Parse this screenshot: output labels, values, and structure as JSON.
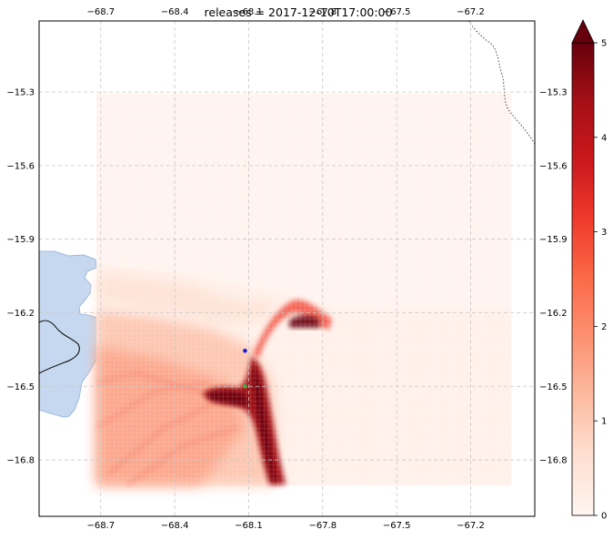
{
  "chart_data": {
    "type": "heatmap",
    "title": "releases = 2017-12-10T17:00:00",
    "title_overlaps": [
      "-68.4",
      "-68.1",
      "-67.8"
    ],
    "x_ticks": [
      -68.7,
      -68.4,
      -68.1,
      -67.8,
      -67.5,
      -67.2
    ],
    "x_tick_labels": [
      "−68.7",
      "−68.4",
      "−68.1",
      "−67.8",
      "−67.5",
      "−67.2"
    ],
    "y_ticks": [
      -15.3,
      -15.6,
      -15.9,
      -16.2,
      -16.5,
      -16.8
    ],
    "y_tick_labels": [
      "−15.3",
      "−15.6",
      "−15.9",
      "−16.2",
      "−16.5",
      "−16.8"
    ],
    "xlim": [
      -68.95,
      -66.94
    ],
    "ylim": [
      -17.03,
      -15.01
    ],
    "grid": true,
    "data_extent": {
      "lon": [
        -68.72,
        -67.04
      ],
      "lat": [
        -16.88,
        -15.29
      ]
    },
    "colorbar": {
      "min": 0,
      "max": 5,
      "extend": "max",
      "cmap": "Reds",
      "ticks": [
        0,
        1,
        2,
        3,
        4,
        5
      ],
      "tick_labels": [
        "0",
        "1",
        "2",
        "3",
        "4",
        "5"
      ]
    },
    "markers": [
      {
        "name": "release",
        "lon": -68.115,
        "lat": -16.355,
        "color": "#1f1fd0"
      },
      {
        "name": "receptor",
        "lon": -68.115,
        "lat": -16.5,
        "color": "#3cb043"
      }
    ],
    "plume_features": [
      {
        "lon": -68.16,
        "lat": -16.5,
        "value": 5.0
      },
      {
        "lon": -68.08,
        "lat": -16.7,
        "value": 5.0
      },
      {
        "lon": -68.06,
        "lat": -16.85,
        "value": 4.8
      },
      {
        "lon": -68.3,
        "lat": -16.5,
        "value": 4.2
      },
      {
        "lon": -67.92,
        "lat": -16.22,
        "value": 4.6
      },
      {
        "lon": -68.0,
        "lat": -16.26,
        "value": 3.5
      },
      {
        "lon": -68.55,
        "lat": -16.45,
        "value": 1.8
      },
      {
        "lon": -68.6,
        "lat": -16.7,
        "value": 1.6
      }
    ],
    "colors": {
      "grid": "#c8c8c8",
      "water": "#c6d8ef",
      "water_edge": "#9fb8df"
    }
  }
}
